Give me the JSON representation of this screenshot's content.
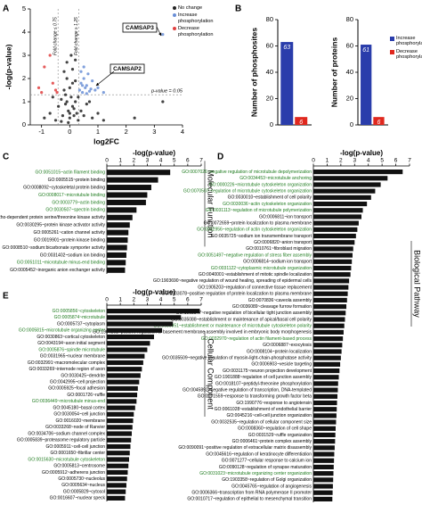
{
  "chart_data": [
    {
      "panel": "A",
      "type": "scatter",
      "xlabel": "log2FC",
      "ylabel": "-log(p-value)",
      "xlim": [
        -1.4,
        4
      ],
      "xticks": [
        -1,
        0,
        1,
        2,
        3,
        4
      ],
      "ylim": [
        0,
        5
      ],
      "yticks": [
        0,
        1,
        2,
        3,
        4,
        5
      ],
      "vlines": [
        {
          "value": -0.415,
          "label": "Fold change ≤ 0.75"
        },
        {
          "value": 0.322,
          "label": "Fold change ≥ 1.25"
        }
      ],
      "hline": {
        "value": 1.301,
        "label": "p-value = 0.05"
      },
      "annotations": [
        "CAMSAP3",
        "CAMSAP2"
      ],
      "legend": "upper right",
      "series": [
        {
          "name": "No change",
          "color": "#222222",
          "x": [
            -0.9,
            -0.7,
            -0.5,
            -0.4,
            -0.3,
            -0.25,
            -0.2,
            -0.15,
            -0.1,
            -0.05,
            0,
            0.05,
            0.1,
            0.15,
            0.2,
            0.25,
            0.3,
            0.4,
            0.5,
            0.6,
            0.8,
            1.0,
            1.2,
            -0.2,
            -0.1,
            0,
            0.1,
            0.2,
            -0.15,
            0.05,
            0.15,
            -0.05,
            0.3,
            -0.3,
            0.1,
            0.0,
            -0.1,
            0.2,
            2.3,
            3.3,
            -0.6,
            0.7
          ],
          "values": [
            0.3,
            0.5,
            0.2,
            0.8,
            1.1,
            0.4,
            1.5,
            0.9,
            2.0,
            0.6,
            0.3,
            1.2,
            1.8,
            0.7,
            1.0,
            0.5,
            0.2,
            0.6,
            0.4,
            0.9,
            0.3,
            0.5,
            0.2,
            2.3,
            2.7,
            1.6,
            2.4,
            1.9,
            1.3,
            3.0,
            0.4,
            0.1,
            1.2,
            0.15,
            0.8,
            0.5,
            1.0,
            2.8,
            0.3,
            1.0,
            1.2,
            1.0
          ]
        },
        {
          "name": "Increase phosphorylation",
          "color": "#6a8fd6",
          "x": [
            0.35,
            0.4,
            0.45,
            0.5,
            0.55,
            0.6,
            0.7,
            0.8,
            0.9,
            1.0,
            0.4,
            0.5,
            0.6,
            1.2,
            0.45,
            3.3,
            0.65,
            0.75
          ],
          "values": [
            1.5,
            1.8,
            1.4,
            2.0,
            1.6,
            1.7,
            1.45,
            1.9,
            1.5,
            1.6,
            2.3,
            2.5,
            1.35,
            1.4,
            1.7,
            3.9,
            2.2,
            1.55
          ]
        },
        {
          "name": "Decrease phosphorylation",
          "color": "#e04040",
          "x": [
            -1.1,
            -0.9,
            -0.7,
            -0.5,
            -0.45,
            -1.0,
            -0.6
          ],
          "values": [
            1.6,
            2.5,
            3.0,
            1.5,
            1.4,
            1.4,
            1.8
          ]
        }
      ]
    },
    {
      "panel": "B",
      "type": "bar",
      "ylabel": "Number of phosphosites",
      "categories": [
        null
      ],
      "ylim": [
        0,
        80
      ],
      "yticks": [
        0,
        20,
        40,
        60,
        80
      ],
      "legend": false,
      "series": [
        {
          "name": "Increase phosphorylation",
          "color": "#2a3dab",
          "values": [
            63
          ]
        },
        {
          "name": "Decrease phosphorylation",
          "color": "#e0281e",
          "values": [
            6
          ]
        }
      ]
    },
    {
      "type": "bar",
      "ylabel": "Number of proteins",
      "categories": [
        null
      ],
      "ylim": [
        0,
        80
      ],
      "yticks": [
        0,
        20,
        40,
        60,
        80
      ],
      "legend": "right",
      "series": [
        {
          "name": "Increase phosphorylation",
          "color": "#2a3dab",
          "values": [
            61
          ]
        },
        {
          "name": "Decrease phosphorylation",
          "color": "#e0281e",
          "values": [
            6
          ]
        }
      ]
    },
    {
      "panel": "C",
      "type": "barh",
      "xlabel": "-log(p-value)",
      "side_label": "Molecular Function",
      "color": "#111111",
      "xlim": [
        0,
        7
      ],
      "xticks": [
        0,
        1,
        2,
        3,
        4,
        5,
        6,
        7
      ],
      "categories": [
        "GO:0051015~actin filament binding",
        "GO:0005515~protein binding",
        "GO:0008092~cytoskeletal protein binding",
        "GO:0008017~microtubule binding",
        "GO:0003779~actin binding",
        "GO:0030507~spectrin binding",
        "GO:0072518~Rho-dependent protein serine/threonine kinase activity",
        "GO:0030295~protein kinase activator activity",
        "GO:0005261~cation channel activity",
        "GO:0019901~protein kinase binding",
        "GO:0008510~sodium:bicarbonate symporter activity",
        "GO:0031402~sodium ion binding",
        "GO:0051011~microtubule minus-end binding",
        "GO:0005452~inorganic anion exchanger activity"
      ],
      "label_colors": [
        "#1e7b1e",
        "#000000",
        "#000000",
        "#1e7b1e",
        "#1e7b1e",
        "#1e7b1e",
        "#000000",
        "#000000",
        "#000000",
        "#000000",
        "#000000",
        "#000000",
        "#1e7b1e",
        "#000000"
      ],
      "values": [
        4.7,
        3.8,
        3.3,
        3.0,
        2.9,
        2.2,
        1.9,
        1.7,
        1.6,
        1.55,
        1.5,
        1.45,
        1.4,
        1.35
      ]
    },
    {
      "panel": "D",
      "type": "barh",
      "xlabel": "-log(p-value)",
      "side_label": "Biological Pathway",
      "color": "#111111",
      "xlim": [
        0,
        7
      ],
      "xticks": [
        0,
        1,
        2,
        3,
        4,
        5,
        6,
        7
      ],
      "categories": [
        "GO:0007026~negative regulation of microtubule depolymerization",
        "GO:0034453~microtubule anchoring",
        "GO:0000226~microtubule cytoskeleton organization",
        "GO:0070507~regulation of microtubule cytoskeleton organization",
        "GO:0030010~establishment of cell polarity",
        "GO:0030036~actin cytoskeleton organization",
        "GO:0031113~regulation of microtubule polymerization",
        "GO:0006811~ion transport",
        "GO:0072659~protein localization to plasma membrane",
        "GO:0032956~regulation of actin cytoskeleton organization",
        "GO:0035725~sodium ion transmembrane transport",
        "GO:0006820~anion transport",
        "GO:0010761~fibroblast migration",
        "GO:0051497~negative regulation of stress fiber assembly",
        "GO:0006814~sodium ion transport",
        "GO:0031122~cytoplasmic microtubule organization",
        "GO:0040001~establishment of mitotic spindle localization",
        "GO:1903690~negative regulation of wound healing, spreading of epidermal cells",
        "GO:1905203~regulation of connective tissue replacement",
        "GO:1903078~positive regulation of protein localization to plasma membrane",
        "GO:0070836~caveola assembly",
        "GO:0036089~cleavage furrow formation",
        "GO:1903347~negative regulation of bicellular tight junction assembly",
        "GO:0035088~establishment or maintenance of apical/basal cell polarity",
        "GO:0030951~establishment or maintenance of microtubule cytoskeleton polarity",
        "GO:1904261~positive regulation of basement membrane assembly involved in embryonic body morphogenesis",
        "GO:0032970~regulation of actin filament-based process",
        "GO:0006887~exocytosis",
        "GO:0008104~protein localization",
        "GO:0035509~negative regulation of myosin-light-chain-phosphatase activity",
        "GO:0006903~vesicle targeting",
        "GO:0031175~neuron projection development",
        "GO:1901888~regulation of cell junction assembly",
        "GO:0018107~peptidyl-threonine phosphorylation",
        "GO:0045892~negative regulation of transcription, DNA-templated",
        "GO:0071559~response to transforming growth factor beta",
        "GO:1990776~response to angiotensin",
        "GO:0061028~establishment of endothelial barrier",
        "GO:0045216~cell-cell junction organization",
        "GO:0032535~regulation of cellular component size",
        "GO:0008360~regulation of cell shape",
        "GO:0031529~ruffle organization",
        "GO:0006461~protein complex assembly",
        "GO:0090091~positive regulation of extracellular matrix disassembly",
        "GO:0045616~regulation of keratinocyte differentiation",
        "GO:0071277~cellular response to calcium ion",
        "GO:0090128~regulation of synapse maturation",
        "GO:0031023~microtubule organizing center organization",
        "GO:1903358~regulation of Golgi organization",
        "GO:0045765~regulation of angiogenesis",
        "GO:0006366~transcription from RNA polymerase II promoter",
        "GO:0010717~regulation of epithelial to mesenchymal transition"
      ],
      "label_colors": [
        "#1e7b1e",
        "#1e7b1e",
        "#1e7b1e",
        "#1e7b1e",
        "#000000",
        "#1e7b1e",
        "#1e7b1e",
        "#000000",
        "#000000",
        "#1e7b1e",
        "#000000",
        "#000000",
        "#000000",
        "#1e7b1e",
        "#000000",
        "#1e7b1e",
        "#000000",
        "#000000",
        "#000000",
        "#000000",
        "#000000",
        "#000000",
        "#000000",
        "#000000",
        "#1e7b1e",
        "#000000",
        "#1e7b1e",
        "#000000",
        "#000000",
        "#000000",
        "#000000",
        "#000000",
        "#000000",
        "#000000",
        "#000000",
        "#000000",
        "#000000",
        "#000000",
        "#000000",
        "#000000",
        "#000000",
        "#000000",
        "#000000",
        "#000000",
        "#000000",
        "#000000",
        "#000000",
        "#1e7b1e",
        "#000000",
        "#000000",
        "#000000",
        "#000000"
      ],
      "values": [
        6.5,
        5.4,
        4.9,
        4.5,
        4.2,
        3.9,
        3.6,
        3.5,
        3.3,
        3.2,
        3.1,
        3.0,
        2.9,
        2.85,
        2.8,
        2.75,
        2.7,
        2.6,
        2.55,
        2.5,
        2.45,
        2.4,
        2.35,
        2.3,
        2.25,
        2.2,
        2.15,
        2.1,
        2.05,
        2.0,
        1.95,
        1.9,
        1.85,
        1.8,
        1.78,
        1.75,
        1.72,
        1.7,
        1.68,
        1.65,
        1.62,
        1.6,
        1.58,
        1.55,
        1.52,
        1.5,
        1.48,
        1.46,
        1.44,
        1.42,
        1.4,
        1.38
      ]
    },
    {
      "panel": "E",
      "type": "barh",
      "xlabel": "-log(p-value)",
      "side_label": "Cellular Component",
      "color": "#111111",
      "xlim": [
        0,
        7
      ],
      "xticks": [
        0,
        1,
        2,
        3,
        4,
        5,
        6,
        7
      ],
      "categories": [
        "GO:0005856~cytoskeleton",
        "GO:0005874~microtubule",
        "GO:0005737~cytoplasm",
        "GO:0005815~microtubule organizing center",
        "GO:0030863~cortical cytoskeleton",
        "GO:0043194~axon initial segment",
        "GO:0005876~spindle microtubule",
        "GO:0031965~nuclear membrane",
        "GO:0032991~macromolecular complex",
        "GO:0033269~internode region of axon",
        "GO:0030425~dendrite",
        "GO:0042995~cell projection",
        "GO:0005925~focal adhesion",
        "GO:0001726~ruffle",
        "GO:0036449~microtubule minus-end",
        "GO:0045180~basal cortex",
        "GO:0030054~cell junction",
        "GO:0016020~membrane",
        "GO:0033268~node of Ranvier",
        "GO:0034706~sodium channel complex",
        "GO:0005839~proteasome regulatory particle",
        "GO:0005911~cell-cell junction",
        "GO:0001650~fibrillar center",
        "GO:0015630~microtubule cytoskeleton",
        "GO:0005813~centrosome",
        "GO:0005912~adherens junction",
        "GO:0005730~nucleolus",
        "GO:0005634~nucleus",
        "GO:0005829~cytosol",
        "GO:0016607~nuclear speck"
      ],
      "label_colors": [
        "#1e7b1e",
        "#1e7b1e",
        "#000000",
        "#1e7b1e",
        "#000000",
        "#000000",
        "#1e7b1e",
        "#000000",
        "#000000",
        "#000000",
        "#000000",
        "#000000",
        "#000000",
        "#000000",
        "#1e7b1e",
        "#000000",
        "#000000",
        "#000000",
        "#000000",
        "#000000",
        "#000000",
        "#000000",
        "#000000",
        "#1e7b1e",
        "#000000",
        "#000000",
        "#000000",
        "#000000",
        "#000000",
        "#000000"
      ],
      "values": [
        6.9,
        5.5,
        4.9,
        4.1,
        3.5,
        3.2,
        3.0,
        2.8,
        2.7,
        2.6,
        2.5,
        2.4,
        2.3,
        2.25,
        2.2,
        2.1,
        2.0,
        1.95,
        1.9,
        1.85,
        1.8,
        1.75,
        1.7,
        1.65,
        1.6,
        1.55,
        1.5,
        1.45,
        1.4,
        1.35
      ]
    }
  ]
}
